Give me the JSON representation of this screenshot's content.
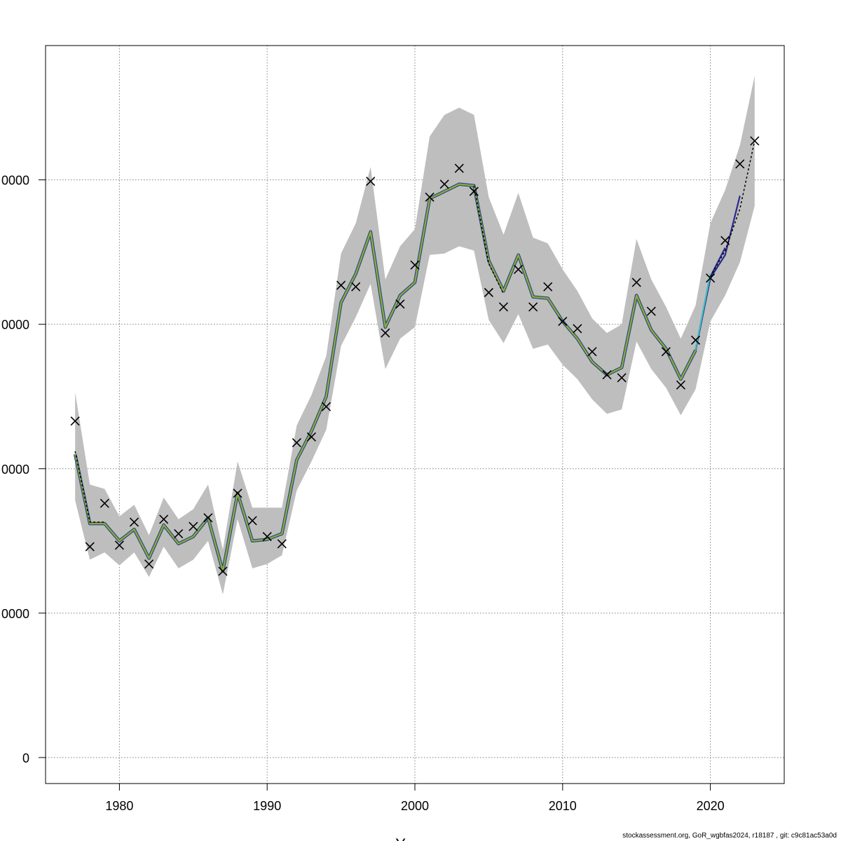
{
  "chart_data": {
    "type": "line",
    "title": "",
    "xlabel": "Years",
    "ylabel": "",
    "xlim": [
      1975,
      2025
    ],
    "ylim": [
      -18000,
      493000
    ],
    "grid": true,
    "x_ticks": [
      1980,
      1990,
      2000,
      2010,
      2020
    ],
    "x_tick_labels": [
      "1980",
      "1990",
      "2000",
      "2010",
      "2020"
    ],
    "y_ticks": [
      0,
      100000,
      200000,
      300000,
      400000
    ],
    "y_tick_labels": [
      "0",
      "0000",
      "0000",
      "0000",
      "0000"
    ],
    "colors": {
      "band": "#bebebe",
      "estimate": "#9aa63c",
      "estimate_outline": "#1e8060",
      "retro_dark": "#2a2a8c",
      "retro_teal": "#3fbfbf",
      "observed": "#000000"
    },
    "confidence_band": {
      "x": [
        1977,
        1978,
        1979,
        1980,
        1981,
        1982,
        1983,
        1984,
        1985,
        1986,
        1987,
        1988,
        1989,
        1990,
        1991,
        1992,
        1993,
        1994,
        1995,
        1996,
        1997,
        1998,
        1999,
        2000,
        2001,
        2002,
        2003,
        2004,
        2005,
        2006,
        2007,
        2008,
        2009,
        2010,
        2011,
        2012,
        2013,
        2014,
        2015,
        2016,
        2017,
        2018,
        2019,
        2020,
        2021,
        2022,
        2023
      ],
      "lower": [
        178000,
        137000,
        142000,
        133000,
        142000,
        125000,
        146000,
        131000,
        137000,
        150000,
        113000,
        165000,
        131000,
        134000,
        140000,
        185000,
        205000,
        227000,
        285000,
        305000,
        328000,
        269000,
        290000,
        298000,
        348000,
        349000,
        354000,
        351000,
        303000,
        287000,
        307000,
        283000,
        286000,
        272000,
        262000,
        248000,
        238000,
        241000,
        288000,
        269000,
        256000,
        237000,
        255000,
        302000,
        320000,
        343000,
        382000
      ],
      "upper": [
        253000,
        189000,
        186000,
        167000,
        175000,
        154000,
        180000,
        165000,
        172000,
        189000,
        144000,
        205000,
        173000,
        173000,
        173000,
        230000,
        251000,
        278000,
        349000,
        370000,
        409000,
        331000,
        354000,
        366000,
        430000,
        445000,
        450000,
        445000,
        388000,
        362000,
        391000,
        360000,
        356000,
        338000,
        323000,
        304000,
        294000,
        300000,
        359000,
        331000,
        312000,
        290000,
        313000,
        370000,
        393000,
        424000,
        472000
      ]
    },
    "series": [
      {
        "x": [
          1977,
          1978,
          1979,
          1980,
          1981,
          1982,
          1983,
          1984,
          1985,
          1986,
          1987,
          1988,
          1989,
          1990,
          1991,
          1992,
          1993,
          1994,
          1995,
          1996,
          1997,
          1998,
          1999,
          2000,
          2001,
          2002,
          2003,
          2004,
          2005,
          2006,
          2007,
          2008,
          2009,
          2010,
          2011,
          2012,
          2013,
          2014,
          2015,
          2016,
          2017,
          2018,
          2019
        ],
        "values": [
          210000,
          162000,
          162000,
          150000,
          158000,
          138000,
          161000,
          148000,
          153000,
          166000,
          129000,
          183000,
          150000,
          151000,
          155000,
          206000,
          226000,
          250000,
          315000,
          335000,
          364000,
          298000,
          320000,
          329000,
          387000,
          392000,
          397000,
          396000,
          344000,
          323000,
          348000,
          319000,
          318000,
          302000,
          290000,
          274000,
          265000,
          270000,
          320000,
          296000,
          283000,
          262000,
          282000
        ]
      }
    ],
    "retrospective_peels": [
      {
        "x": [
          2019,
          2020,
          2021,
          2022
        ],
        "values": [
          282000,
          332000,
          348000,
          389000
        ]
      },
      {
        "x": [
          2019,
          2020,
          2021
        ],
        "values": [
          282000,
          333000,
          353000
        ]
      },
      {
        "x": [
          2018,
          2019,
          2020
        ],
        "values": [
          263000,
          283000,
          335000
        ]
      }
    ],
    "retro_shift": [
      {
        "x": [
          1977,
          1978,
          1979
        ],
        "values": [
          212000,
          163000,
          163000
        ]
      },
      {
        "x": [
          2004,
          2005,
          2006
        ],
        "values": [
          396000,
          342000,
          321000
        ]
      },
      {
        "x": [
          2020,
          2021,
          2022,
          2023
        ],
        "values": [
          333000,
          351000,
          380000,
          427000
        ]
      }
    ],
    "observed": {
      "x": [
        1977,
        1978,
        1979,
        1980,
        1981,
        1982,
        1983,
        1984,
        1985,
        1986,
        1987,
        1988,
        1989,
        1990,
        1991,
        1992,
        1993,
        1994,
        1995,
        1996,
        1997,
        1998,
        1999,
        2000,
        2001,
        2002,
        2003,
        2004,
        2005,
        2006,
        2007,
        2008,
        2009,
        2010,
        2011,
        2012,
        2013,
        2014,
        2015,
        2016,
        2017,
        2018,
        2019,
        2020,
        2021,
        2022,
        2023
      ],
      "values": [
        233000,
        146000,
        176000,
        147000,
        163000,
        134000,
        165000,
        155000,
        160000,
        166000,
        129000,
        183000,
        164000,
        153000,
        148000,
        218000,
        222000,
        243000,
        327000,
        326000,
        399000,
        294000,
        314000,
        341000,
        388000,
        397000,
        408000,
        392000,
        322000,
        312000,
        338000,
        312000,
        326000,
        302000,
        297000,
        281000,
        265000,
        263000,
        329000,
        309000,
        281000,
        258000,
        289000,
        332000,
        358000,
        411000,
        427000
      ]
    },
    "footer": "stockassessment.org, GoR_wgbfas2024, r18187 , git: c9c81ac53a0d"
  }
}
